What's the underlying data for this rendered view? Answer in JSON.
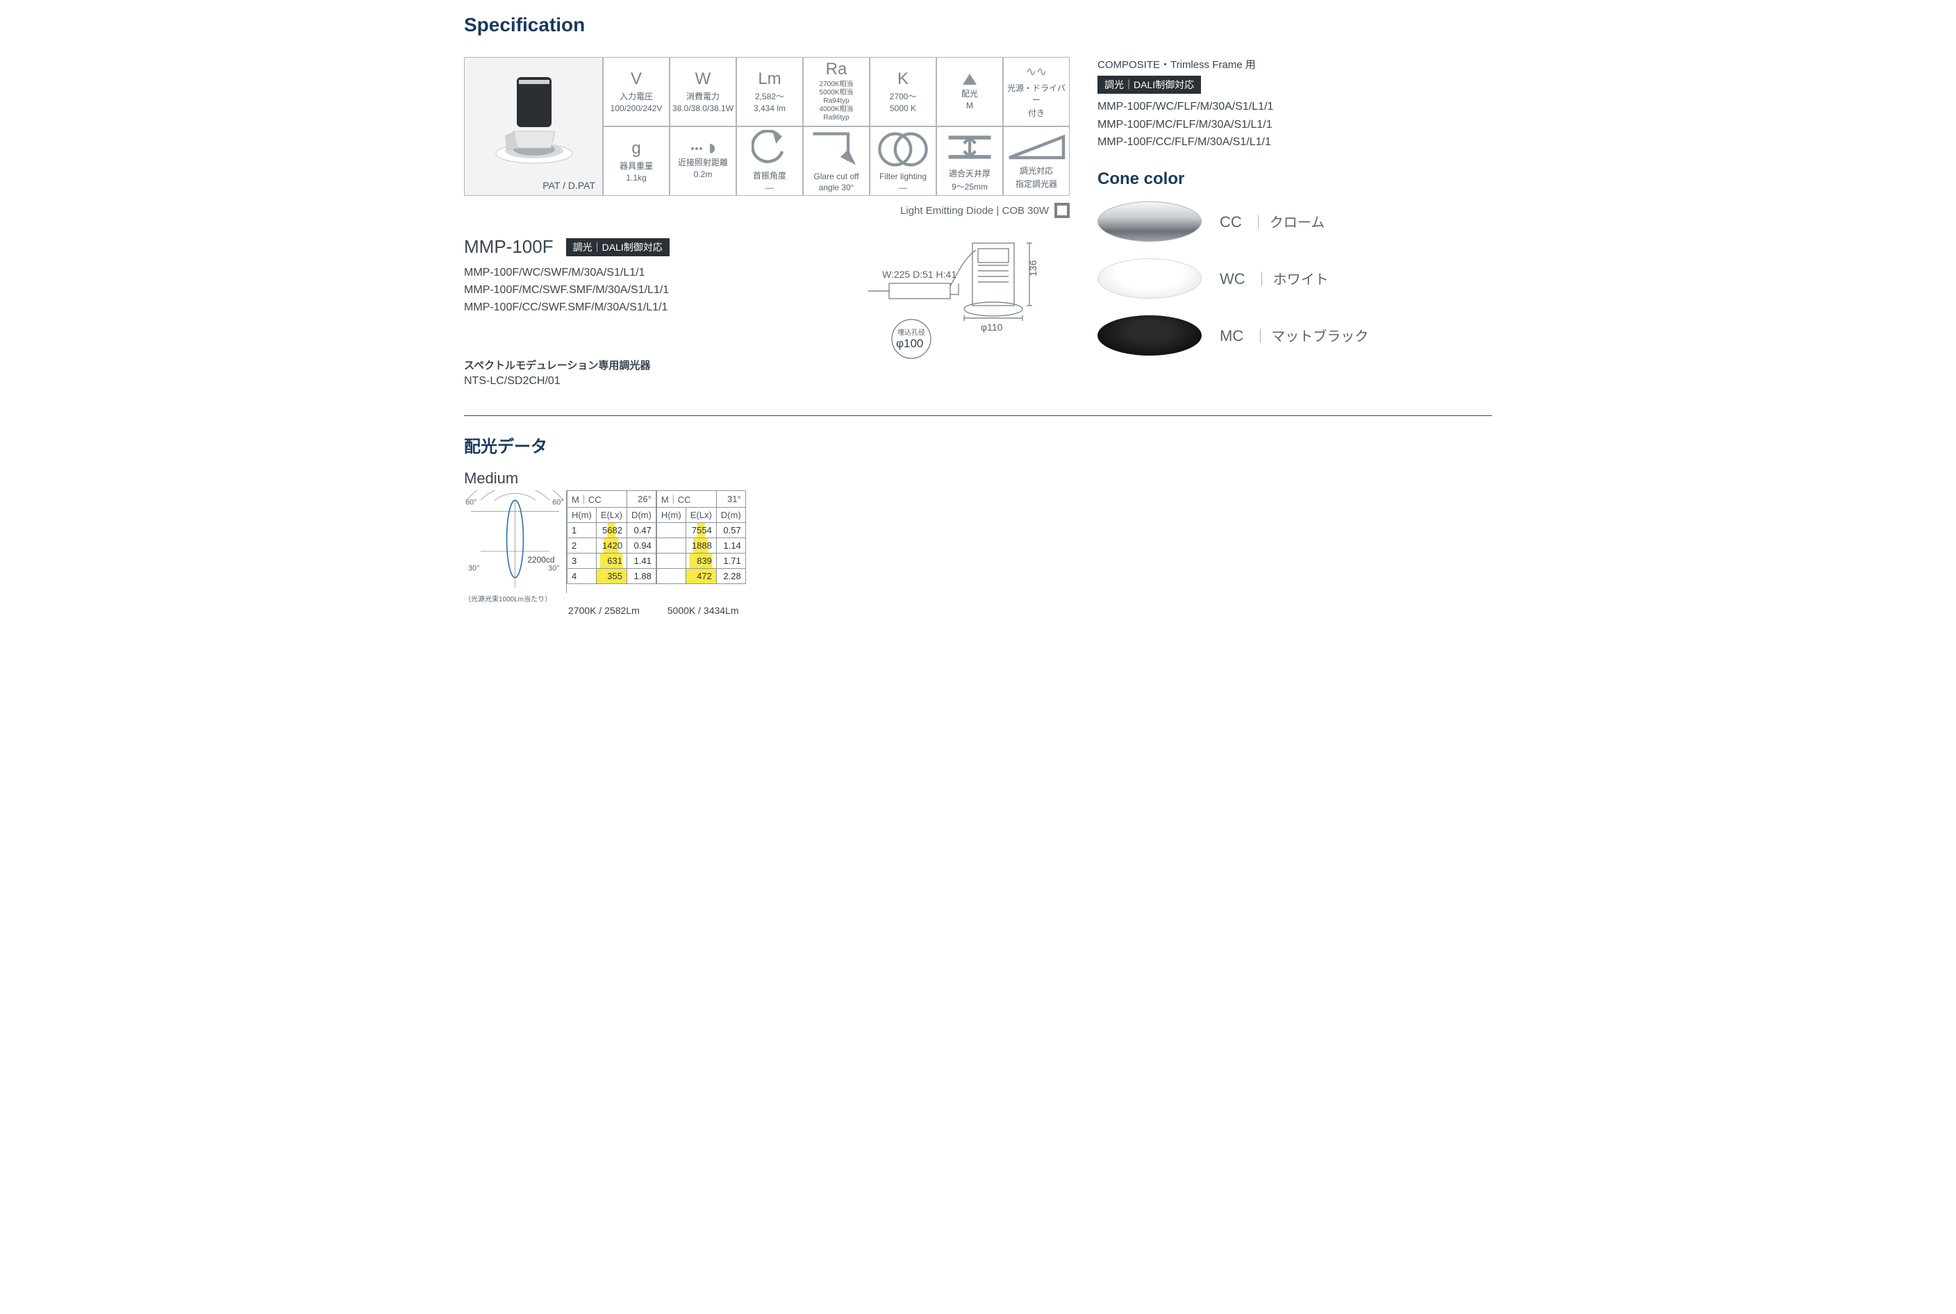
{
  "section_title": "Specification",
  "product_image": {
    "pat_label": "PAT / D.PAT"
  },
  "spec_cells": {
    "r1": [
      {
        "sym": "V",
        "lbl": "入力電圧",
        "val": "100/200/242V"
      },
      {
        "sym": "W",
        "lbl": "消費電力",
        "val": "38.0/38.0/38.1W"
      },
      {
        "sym": "Lm",
        "lbl": "2,582〜",
        "val": "3,434 lm"
      },
      {
        "sym": "Ra",
        "lbl": "2700K相当\n5000K相当\nRa94typ\n4000K相当\nRa96typ",
        "val": ""
      },
      {
        "sym": "K",
        "lbl": "2700〜",
        "val": "5000 K"
      },
      {
        "sym": "▲",
        "lbl": "配光",
        "val": "M"
      },
      {
        "sym": "〰",
        "lbl": "光源・ドライバー",
        "val": "付き"
      }
    ],
    "r2": [
      {
        "sym": "g",
        "lbl": "器具重量",
        "val": "1.1kg"
      },
      {
        "sym": "…◗",
        "lbl": "近接照射距離",
        "val": "0.2m"
      },
      {
        "sym": "↶",
        "lbl": "首振角度",
        "val": "—"
      },
      {
        "sym": "↘",
        "lbl": "Glare cut off",
        "val": "angle 30°"
      },
      {
        "sym": "◯◯",
        "lbl": "Filter lighting",
        "val": "—"
      },
      {
        "sym": "⌶",
        "lbl": "適合天井厚",
        "val": "9〜25mm"
      },
      {
        "sym": "◢",
        "lbl": "調光対応",
        "val": "指定調光器"
      }
    ]
  },
  "led_line": "Light Emitting Diode | COB 30W",
  "diagram": {
    "wdh": "W:225 D:51 H:41",
    "height_dim": "136",
    "diameter": "φ110",
    "hole_label": "埋込孔径",
    "hole_value": "φ100"
  },
  "model": {
    "name": "MMP-100F",
    "badge": "調光｜DALI制御対応",
    "list": [
      "MMP-100F/WC/SWF/M/30A/S1/L1/1",
      "MMP-100F/MC/SWF.SMF/M/30A/S1/L1/1",
      "MMP-100F/CC/SWF.SMF/M/30A/S1/L1/1"
    ]
  },
  "dimmer_note": {
    "title": "スペクトルモデュレーション専用調光器",
    "value": "NTS-LC/SD2CH/01"
  },
  "right": {
    "head": "COMPOSITE・Trimless Frame 用",
    "badge": "調光｜DALI制御対応",
    "list": [
      "MMP-100F/WC/FLF/M/30A/S1/L1/1",
      "MMP-100F/MC/FLF/M/30A/S1/L1/1",
      "MMP-100F/CC/FLF/M/30A/S1/L1/1"
    ],
    "cone_title": "Cone color",
    "cones": [
      {
        "code": "CC",
        "name": "クローム",
        "cls": "cone-cc"
      },
      {
        "code": "WC",
        "name": "ホワイト",
        "cls": "cone-wc"
      },
      {
        "code": "MC",
        "name": "マットブラック",
        "cls": "cone-mc"
      }
    ]
  },
  "dist": {
    "title": "配光データ",
    "subtitle": "Medium",
    "polar_peak": "2200cd",
    "polar_note": "（光源光束1000Lm当たり）",
    "angles": [
      "60°",
      "30°",
      "30°",
      "60°"
    ],
    "tables": [
      {
        "head_l": "M｜CC",
        "head_r": "26°",
        "cols": [
          "H(m)",
          "E(Lx)",
          "D(m)"
        ],
        "rows": [
          [
            "1",
            "5682",
            "0.47"
          ],
          [
            "2",
            "1420",
            "0.94"
          ],
          [
            "3",
            "631",
            "1.41"
          ],
          [
            "4",
            "355",
            "1.88"
          ]
        ],
        "caption": "2700K / 2582Lm"
      },
      {
        "head_l": "M｜CC",
        "head_r": "31°",
        "cols": [
          "H(m)",
          "E(Lx)",
          "D(m)"
        ],
        "rows": [
          [
            "",
            "7554",
            "0.57"
          ],
          [
            "",
            "1888",
            "1.14"
          ],
          [
            "",
            "839",
            "1.71"
          ],
          [
            "",
            "472",
            "2.28"
          ]
        ],
        "caption": "5000K / 3434Lm"
      }
    ]
  },
  "colors": {
    "heading": "#1a3a5c",
    "text": "#3a444d",
    "muted": "#6b757e",
    "border": "#b0b6bb",
    "yellow": "#f7e948"
  }
}
